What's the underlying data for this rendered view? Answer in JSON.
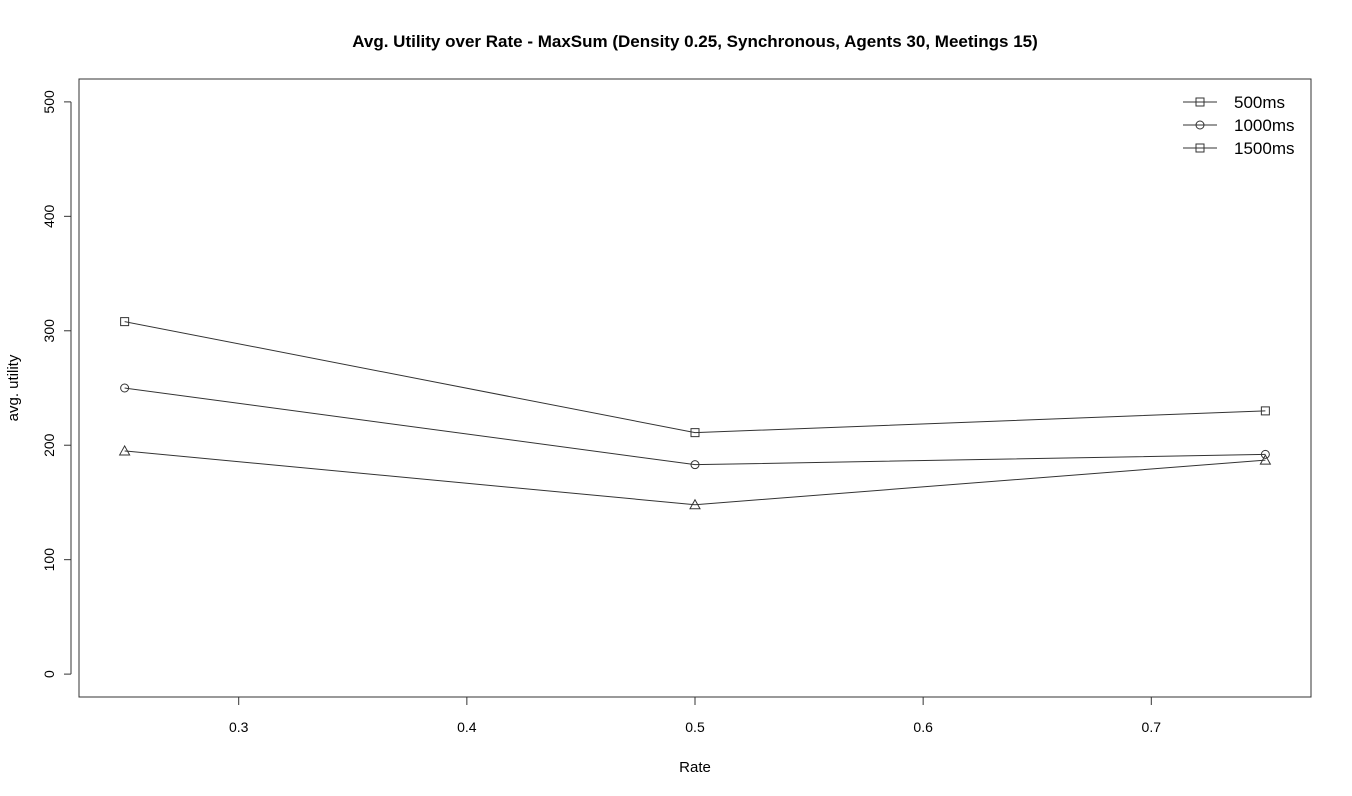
{
  "chart_data": {
    "type": "line",
    "title": "Avg. Utility over Rate - MaxSum (Density 0.25, Synchronous, Agents 30, Meetings 15)",
    "xlabel": "Rate",
    "ylabel": "avg. utility",
    "xlim": [
      0.23,
      0.77
    ],
    "ylim": [
      -20,
      520
    ],
    "x_ticks": [
      0.3,
      0.4,
      0.5,
      0.6,
      0.7
    ],
    "x_tick_labels": [
      "0.3",
      "0.4",
      "0.5",
      "0.6",
      "0.7"
    ],
    "y_ticks": [
      0,
      100,
      200,
      300,
      400,
      500
    ],
    "y_tick_labels": [
      "0",
      "100",
      "200",
      "300",
      "400",
      "500"
    ],
    "x": [
      0.25,
      0.5,
      0.75
    ],
    "series": [
      {
        "name": "500ms",
        "marker": "square",
        "values": [
          308,
          211,
          230
        ]
      },
      {
        "name": "1000ms",
        "marker": "circle",
        "values": [
          250,
          183,
          192
        ]
      },
      {
        "name": "1500ms",
        "marker": "triangle",
        "legend_marker": "square",
        "values": [
          195,
          148,
          187
        ]
      }
    ],
    "legend_position": "top-right",
    "grid": false
  }
}
